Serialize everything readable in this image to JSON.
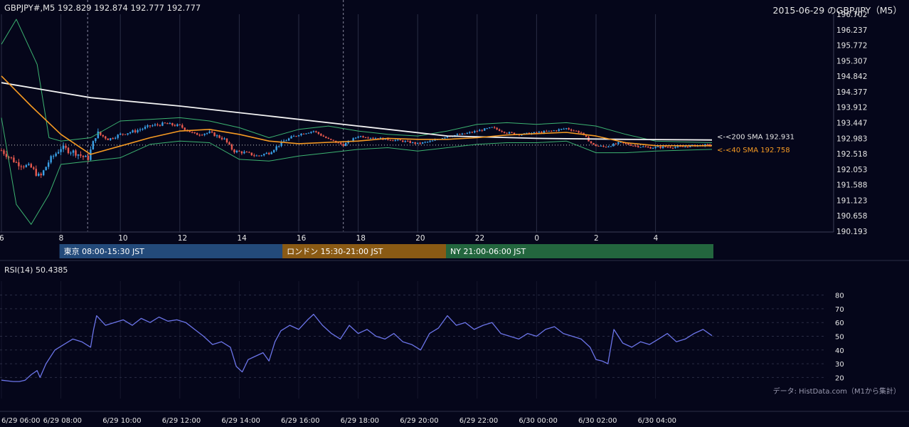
{
  "header": {
    "symbol_line": "GBPJPY#,M5 192.829 192.874 192.777 192.777",
    "title": "2015-06-29 のGBP/JPY（M5）"
  },
  "colors": {
    "background": "#05061a",
    "grid": "#2a2d45",
    "candle_up": "#3aa0e6",
    "candle_down": "#e85a4f",
    "sma200": "#f2f2f2",
    "sma40": "#f59a23",
    "bollinger": "#3cb371",
    "rsi_line": "#6b74e8",
    "tokyo": "#234a7a",
    "london": "#8a5a14",
    "ny": "#23663e"
  },
  "chart_data": [
    {
      "type": "candlestick",
      "ylim": [
        190.193,
        196.702
      ],
      "y_ticks": [
        "196.702",
        "196.237",
        "195.772",
        "195.307",
        "194.842",
        "194.377",
        "193.912",
        "193.447",
        "192.983",
        "192.518",
        "192.053",
        "191.588",
        "191.123",
        "190.658",
        "190.193"
      ],
      "x_ticks": [
        "6",
        "8",
        "10",
        "12",
        "14",
        "16",
        "18",
        "20",
        "22",
        "0",
        "2",
        "4"
      ],
      "x_hours_start": 6,
      "x_hours_end": 29.9,
      "close_series": [
        {
          "h": 6.0,
          "v": 192.62
        },
        {
          "h": 6.5,
          "v": 192.25
        },
        {
          "h": 7.0,
          "v": 192.1
        },
        {
          "h": 7.3,
          "v": 191.8
        },
        {
          "h": 7.6,
          "v": 192.3
        },
        {
          "h": 8.0,
          "v": 192.7
        },
        {
          "h": 8.5,
          "v": 192.55
        },
        {
          "h": 8.9,
          "v": 192.35
        },
        {
          "h": 9.2,
          "v": 193.15
        },
        {
          "h": 9.6,
          "v": 192.95
        },
        {
          "h": 10.0,
          "v": 193.1
        },
        {
          "h": 10.5,
          "v": 193.2
        },
        {
          "h": 11.0,
          "v": 193.35
        },
        {
          "h": 11.5,
          "v": 193.42
        },
        {
          "h": 12.0,
          "v": 193.35
        },
        {
          "h": 12.5,
          "v": 193.1
        },
        {
          "h": 13.0,
          "v": 193.15
        },
        {
          "h": 13.5,
          "v": 192.95
        },
        {
          "h": 13.8,
          "v": 192.6
        },
        {
          "h": 14.2,
          "v": 192.55
        },
        {
          "h": 14.6,
          "v": 192.45
        },
        {
          "h": 15.0,
          "v": 192.55
        },
        {
          "h": 15.5,
          "v": 192.9
        },
        {
          "h": 16.0,
          "v": 193.1
        },
        {
          "h": 16.5,
          "v": 193.2
        },
        {
          "h": 17.0,
          "v": 192.95
        },
        {
          "h": 17.5,
          "v": 192.78
        },
        {
          "h": 18.0,
          "v": 193.05
        },
        {
          "h": 18.5,
          "v": 193.0
        },
        {
          "h": 19.0,
          "v": 192.95
        },
        {
          "h": 19.5,
          "v": 192.9
        },
        {
          "h": 20.0,
          "v": 192.82
        },
        {
          "h": 20.5,
          "v": 192.9
        },
        {
          "h": 21.0,
          "v": 193.05
        },
        {
          "h": 21.5,
          "v": 193.1
        },
        {
          "h": 22.0,
          "v": 193.2
        },
        {
          "h": 22.5,
          "v": 193.3
        },
        {
          "h": 23.0,
          "v": 193.15
        },
        {
          "h": 23.5,
          "v": 193.1
        },
        {
          "h": 24.0,
          "v": 193.15
        },
        {
          "h": 24.5,
          "v": 193.2
        },
        {
          "h": 25.0,
          "v": 193.28
        },
        {
          "h": 25.5,
          "v": 193.15
        },
        {
          "h": 25.9,
          "v": 192.78
        },
        {
          "h": 26.3,
          "v": 192.72
        },
        {
          "h": 26.8,
          "v": 192.85
        },
        {
          "h": 27.3,
          "v": 192.76
        },
        {
          "h": 27.8,
          "v": 192.7
        },
        {
          "h": 28.3,
          "v": 192.72
        },
        {
          "h": 28.8,
          "v": 192.72
        },
        {
          "h": 29.3,
          "v": 192.76
        },
        {
          "h": 29.9,
          "v": 192.78
        }
      ],
      "sma200": [
        {
          "h": 6.0,
          "v": 194.65
        },
        {
          "h": 9.0,
          "v": 194.2
        },
        {
          "h": 12.0,
          "v": 193.95
        },
        {
          "h": 15.0,
          "v": 193.65
        },
        {
          "h": 18.0,
          "v": 193.35
        },
        {
          "h": 21.0,
          "v": 193.05
        },
        {
          "h": 24.0,
          "v": 192.98
        },
        {
          "h": 27.0,
          "v": 192.95
        },
        {
          "h": 29.9,
          "v": 192.931
        }
      ],
      "sma40": [
        {
          "h": 6.0,
          "v": 194.85
        },
        {
          "h": 7.0,
          "v": 193.95
        },
        {
          "h": 8.0,
          "v": 193.1
        },
        {
          "h": 9.0,
          "v": 192.5
        },
        {
          "h": 10.0,
          "v": 192.75
        },
        {
          "h": 11.0,
          "v": 193.0
        },
        {
          "h": 12.0,
          "v": 193.2
        },
        {
          "h": 13.0,
          "v": 193.25
        },
        {
          "h": 14.0,
          "v": 193.1
        },
        {
          "h": 15.0,
          "v": 192.9
        },
        {
          "h": 16.0,
          "v": 192.82
        },
        {
          "h": 17.0,
          "v": 192.86
        },
        {
          "h": 18.0,
          "v": 192.9
        },
        {
          "h": 19.0,
          "v": 192.98
        },
        {
          "h": 20.0,
          "v": 192.95
        },
        {
          "h": 21.0,
          "v": 192.95
        },
        {
          "h": 22.0,
          "v": 193.0
        },
        {
          "h": 23.0,
          "v": 193.08
        },
        {
          "h": 24.0,
          "v": 193.12
        },
        {
          "h": 25.0,
          "v": 193.16
        },
        {
          "h": 26.0,
          "v": 193.05
        },
        {
          "h": 27.0,
          "v": 192.85
        },
        {
          "h": 28.0,
          "v": 192.76
        },
        {
          "h": 29.9,
          "v": 192.758
        }
      ],
      "boll_upper": [
        {
          "h": 6.0,
          "v": 195.8
        },
        {
          "h": 6.5,
          "v": 196.55
        },
        {
          "h": 7.2,
          "v": 195.2
        },
        {
          "h": 7.6,
          "v": 193.0
        },
        {
          "h": 8.0,
          "v": 192.9
        },
        {
          "h": 9.0,
          "v": 193.0
        },
        {
          "h": 10.0,
          "v": 193.5
        },
        {
          "h": 11.0,
          "v": 193.55
        },
        {
          "h": 12.0,
          "v": 193.6
        },
        {
          "h": 13.0,
          "v": 193.5
        },
        {
          "h": 14.0,
          "v": 193.3
        },
        {
          "h": 15.0,
          "v": 193.0
        },
        {
          "h": 16.0,
          "v": 193.25
        },
        {
          "h": 17.0,
          "v": 193.35
        },
        {
          "h": 18.0,
          "v": 193.2
        },
        {
          "h": 19.0,
          "v": 193.1
        },
        {
          "h": 20.0,
          "v": 193.05
        },
        {
          "h": 21.0,
          "v": 193.2
        },
        {
          "h": 22.0,
          "v": 193.4
        },
        {
          "h": 23.0,
          "v": 193.45
        },
        {
          "h": 24.0,
          "v": 193.4
        },
        {
          "h": 25.0,
          "v": 193.45
        },
        {
          "h": 26.0,
          "v": 193.35
        },
        {
          "h": 27.0,
          "v": 193.1
        },
        {
          "h": 28.0,
          "v": 192.9
        },
        {
          "h": 29.9,
          "v": 192.85
        }
      ],
      "boll_lower": [
        {
          "h": 6.0,
          "v": 193.6
        },
        {
          "h": 6.5,
          "v": 191.0
        },
        {
          "h": 7.0,
          "v": 190.4
        },
        {
          "h": 7.6,
          "v": 191.3
        },
        {
          "h": 8.0,
          "v": 192.2
        },
        {
          "h": 9.0,
          "v": 192.3
        },
        {
          "h": 10.0,
          "v": 192.4
        },
        {
          "h": 11.0,
          "v": 192.8
        },
        {
          "h": 12.0,
          "v": 192.9
        },
        {
          "h": 13.0,
          "v": 192.85
        },
        {
          "h": 14.0,
          "v": 192.35
        },
        {
          "h": 15.0,
          "v": 192.3
        },
        {
          "h": 16.0,
          "v": 192.45
        },
        {
          "h": 17.0,
          "v": 192.55
        },
        {
          "h": 18.0,
          "v": 192.65
        },
        {
          "h": 19.0,
          "v": 192.7
        },
        {
          "h": 20.0,
          "v": 192.6
        },
        {
          "h": 21.0,
          "v": 192.7
        },
        {
          "h": 22.0,
          "v": 192.8
        },
        {
          "h": 23.0,
          "v": 192.85
        },
        {
          "h": 24.0,
          "v": 192.85
        },
        {
          "h": 25.0,
          "v": 192.9
        },
        {
          "h": 26.0,
          "v": 192.55
        },
        {
          "h": 27.0,
          "v": 192.55
        },
        {
          "h": 28.0,
          "v": 192.6
        },
        {
          "h": 29.9,
          "v": 192.65
        }
      ],
      "current_price": 192.777,
      "labels": {
        "sma200": "<-<200 SMA 192.931",
        "sma40": "<-<40 SMA 192.758"
      }
    },
    {
      "type": "line",
      "title": "RSI(14) 50.4385",
      "ylim": [
        15,
        85
      ],
      "y_ticks": [
        "80",
        "70",
        "60",
        "50",
        "40",
        "30",
        "20"
      ],
      "x_ticks": [
        "6/29 06:00",
        "6/29 08:00",
        "6/29 10:00",
        "6/29 12:00",
        "6/29 14:00",
        "6/29 16:00",
        "6/29 18:00",
        "6/29 20:00",
        "6/29 22:00",
        "6/30 00:00",
        "6/30 02:00",
        "6/30 04:00"
      ],
      "series": [
        {
          "values": [
            {
              "h": 6.0,
              "v": 18
            },
            {
              "h": 6.4,
              "v": 17
            },
            {
              "h": 6.6,
              "v": 17
            },
            {
              "h": 6.8,
              "v": 18
            },
            {
              "h": 7.0,
              "v": 22
            },
            {
              "h": 7.2,
              "v": 25
            },
            {
              "h": 7.3,
              "v": 20
            },
            {
              "h": 7.5,
              "v": 30
            },
            {
              "h": 7.8,
              "v": 40
            },
            {
              "h": 8.1,
              "v": 44
            },
            {
              "h": 8.4,
              "v": 48
            },
            {
              "h": 8.7,
              "v": 46
            },
            {
              "h": 9.0,
              "v": 42
            },
            {
              "h": 9.1,
              "v": 55
            },
            {
              "h": 9.2,
              "v": 65
            },
            {
              "h": 9.5,
              "v": 58
            },
            {
              "h": 9.8,
              "v": 60
            },
            {
              "h": 10.1,
              "v": 62
            },
            {
              "h": 10.4,
              "v": 58
            },
            {
              "h": 10.7,
              "v": 63
            },
            {
              "h": 11.0,
              "v": 60
            },
            {
              "h": 11.3,
              "v": 64
            },
            {
              "h": 11.6,
              "v": 61
            },
            {
              "h": 11.9,
              "v": 62
            },
            {
              "h": 12.2,
              "v": 60
            },
            {
              "h": 12.5,
              "v": 55
            },
            {
              "h": 12.8,
              "v": 50
            },
            {
              "h": 13.1,
              "v": 44
            },
            {
              "h": 13.4,
              "v": 46
            },
            {
              "h": 13.7,
              "v": 42
            },
            {
              "h": 13.9,
              "v": 28
            },
            {
              "h": 14.1,
              "v": 24
            },
            {
              "h": 14.3,
              "v": 33
            },
            {
              "h": 14.5,
              "v": 35
            },
            {
              "h": 14.8,
              "v": 38
            },
            {
              "h": 15.0,
              "v": 32
            },
            {
              "h": 15.2,
              "v": 46
            },
            {
              "h": 15.4,
              "v": 54
            },
            {
              "h": 15.7,
              "v": 58
            },
            {
              "h": 16.0,
              "v": 55
            },
            {
              "h": 16.3,
              "v": 62
            },
            {
              "h": 16.5,
              "v": 66
            },
            {
              "h": 16.8,
              "v": 58
            },
            {
              "h": 17.1,
              "v": 52
            },
            {
              "h": 17.4,
              "v": 48
            },
            {
              "h": 17.7,
              "v": 58
            },
            {
              "h": 18.0,
              "v": 52
            },
            {
              "h": 18.3,
              "v": 55
            },
            {
              "h": 18.6,
              "v": 50
            },
            {
              "h": 18.9,
              "v": 48
            },
            {
              "h": 19.2,
              "v": 52
            },
            {
              "h": 19.5,
              "v": 46
            },
            {
              "h": 19.8,
              "v": 44
            },
            {
              "h": 20.1,
              "v": 40
            },
            {
              "h": 20.4,
              "v": 52
            },
            {
              "h": 20.7,
              "v": 56
            },
            {
              "h": 21.0,
              "v": 65
            },
            {
              "h": 21.3,
              "v": 58
            },
            {
              "h": 21.6,
              "v": 60
            },
            {
              "h": 21.9,
              "v": 55
            },
            {
              "h": 22.2,
              "v": 58
            },
            {
              "h": 22.5,
              "v": 60
            },
            {
              "h": 22.8,
              "v": 52
            },
            {
              "h": 23.1,
              "v": 50
            },
            {
              "h": 23.4,
              "v": 48
            },
            {
              "h": 23.7,
              "v": 52
            },
            {
              "h": 24.0,
              "v": 50
            },
            {
              "h": 24.3,
              "v": 55
            },
            {
              "h": 24.6,
              "v": 57
            },
            {
              "h": 24.9,
              "v": 52
            },
            {
              "h": 25.2,
              "v": 50
            },
            {
              "h": 25.5,
              "v": 48
            },
            {
              "h": 25.8,
              "v": 42
            },
            {
              "h": 26.0,
              "v": 33
            },
            {
              "h": 26.2,
              "v": 32
            },
            {
              "h": 26.4,
              "v": 30
            },
            {
              "h": 26.6,
              "v": 55
            },
            {
              "h": 26.9,
              "v": 45
            },
            {
              "h": 27.2,
              "v": 42
            },
            {
              "h": 27.5,
              "v": 46
            },
            {
              "h": 27.8,
              "v": 44
            },
            {
              "h": 28.1,
              "v": 48
            },
            {
              "h": 28.4,
              "v": 52
            },
            {
              "h": 28.7,
              "v": 46
            },
            {
              "h": 29.0,
              "v": 48
            },
            {
              "h": 29.3,
              "v": 52
            },
            {
              "h": 29.6,
              "v": 55
            },
            {
              "h": 29.9,
              "v": 50.4385
            }
          ]
        }
      ]
    }
  ],
  "sessions": [
    {
      "label": "東京 08:00-15:30 JST",
      "start_h": 8.0,
      "end_h": 15.5,
      "color": "#234a7a"
    },
    {
      "label": "ロンドン 15:30-21:00 JST",
      "start_h": 15.5,
      "end_h": 21.0,
      "color": "#8a5a14"
    },
    {
      "label": "NY 21:00-06:00 JST",
      "start_h": 21.0,
      "end_h": 30.0,
      "color": "#23663e"
    }
  ],
  "footer": {
    "source": "データ: HistData.com（M1から集計）"
  }
}
